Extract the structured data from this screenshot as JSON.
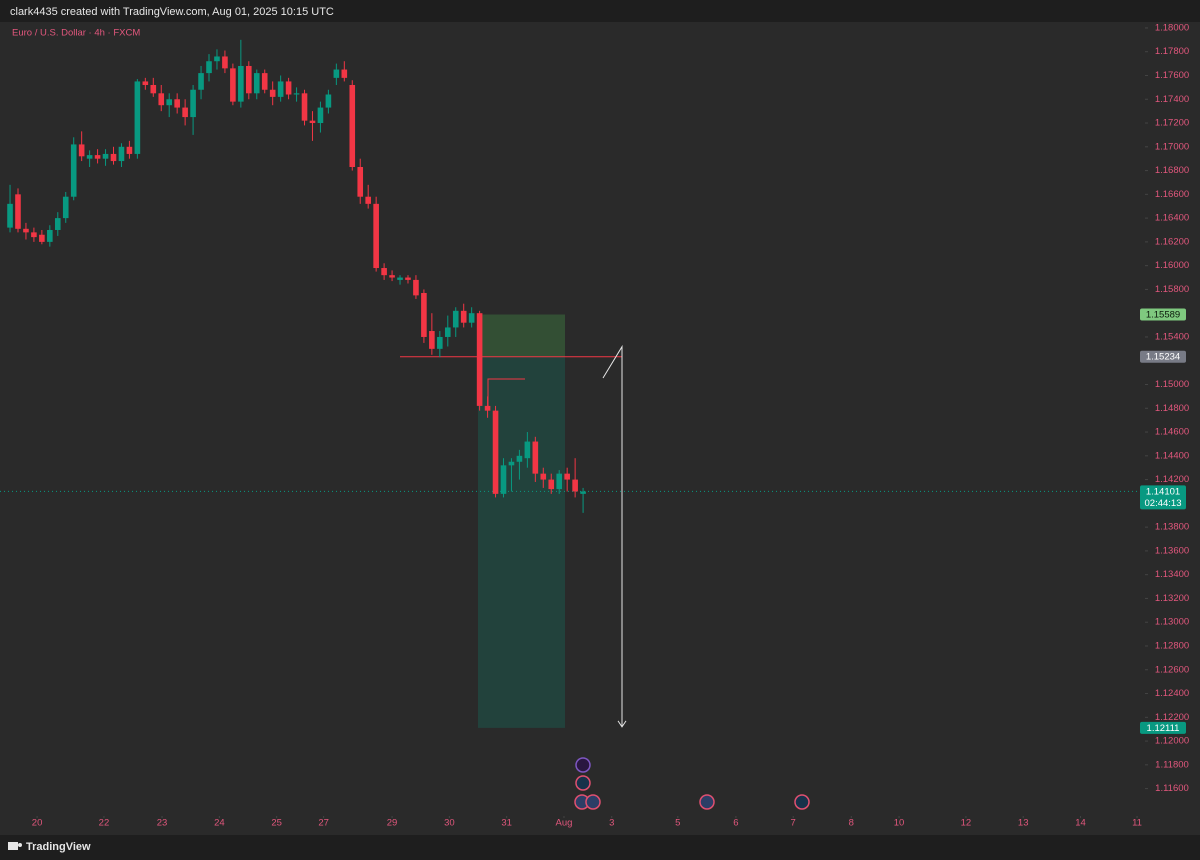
{
  "header": {
    "text": "clark4435 created with TradingView.com, Aug 01, 2025 10:15 UTC"
  },
  "chart_data": {
    "type": "candlestick",
    "title": "Euro / U.S. Dollar · 4h · FXCM",
    "up_color": "#089981",
    "down_color": "#f23645",
    "grid": false,
    "open": [
      1.1632,
      1.166,
      1.1631,
      1.1628,
      1.1626,
      1.162,
      1.163,
      1.164,
      1.1658,
      1.1702,
      1.169,
      1.1693,
      1.169,
      1.1694,
      1.1688,
      1.17,
      1.1694,
      1.1755,
      1.1752,
      1.1745,
      1.1735,
      1.174,
      1.1733,
      1.1725,
      1.1748,
      1.1762,
      1.1772,
      1.1776,
      1.1766,
      1.1738,
      1.1768,
      1.1745,
      1.1762,
      1.1748,
      1.1742,
      1.1755,
      1.1744,
      1.1745,
      1.1722,
      1.172,
      1.1733,
      1.1758,
      1.1765,
      1.1752,
      1.1683,
      1.1658,
      1.1652,
      1.1598,
      1.1592,
      1.1588,
      1.159,
      1.1588,
      1.1577,
      1.1545,
      1.153,
      1.154,
      1.1548,
      1.1562,
      1.1552,
      1.156,
      1.1482,
      1.1478,
      1.1408,
      1.1432,
      1.1435,
      1.1438,
      1.1452,
      1.1425,
      1.142,
      1.1412,
      1.1425,
      1.142,
      1.1408
    ],
    "high": [
      1.1668,
      1.1665,
      1.1636,
      1.1632,
      1.163,
      1.1634,
      1.1645,
      1.1662,
      1.1708,
      1.1713,
      1.1697,
      1.1698,
      1.1698,
      1.17,
      1.1703,
      1.1705,
      1.1757,
      1.1758,
      1.1758,
      1.1752,
      1.1745,
      1.1745,
      1.174,
      1.1752,
      1.1768,
      1.1778,
      1.1782,
      1.1781,
      1.177,
      1.179,
      1.1772,
      1.1765,
      1.1765,
      1.1755,
      1.176,
      1.1758,
      1.175,
      1.1748,
      1.173,
      1.1738,
      1.1748,
      1.177,
      1.1772,
      1.1756,
      1.169,
      1.1668,
      1.1658,
      1.1602,
      1.1596,
      1.1592,
      1.1592,
      1.1592,
      1.158,
      1.156,
      1.1545,
      1.1558,
      1.1565,
      1.1568,
      1.1565,
      1.1562,
      1.149,
      1.1482,
      1.1438,
      1.1438,
      1.1445,
      1.146,
      1.1456,
      1.143,
      1.1425,
      1.1428,
      1.143,
      1.1438,
      1.1413
    ],
    "low": [
      1.1628,
      1.1628,
      1.1622,
      1.162,
      1.1618,
      1.1616,
      1.1625,
      1.1636,
      1.1655,
      1.1688,
      1.1683,
      1.1686,
      1.1684,
      1.1685,
      1.1683,
      1.169,
      1.169,
      1.1748,
      1.1742,
      1.173,
      1.1725,
      1.1728,
      1.1718,
      1.171,
      1.174,
      1.1755,
      1.1765,
      1.1762,
      1.1735,
      1.1733,
      1.174,
      1.174,
      1.1745,
      1.1735,
      1.1738,
      1.174,
      1.1738,
      1.1718,
      1.1705,
      1.1712,
      1.1728,
      1.1752,
      1.1755,
      1.168,
      1.1652,
      1.1648,
      1.1595,
      1.1588,
      1.1587,
      1.1584,
      1.1585,
      1.1572,
      1.1535,
      1.1525,
      1.1523,
      1.1532,
      1.154,
      1.1548,
      1.1548,
      1.1478,
      1.1472,
      1.1405,
      1.1405,
      1.141,
      1.142,
      1.143,
      1.1418,
      1.1413,
      1.1408,
      1.1408,
      1.141,
      1.1405,
      1.1392
    ],
    "close": [
      1.1652,
      1.1631,
      1.1628,
      1.1624,
      1.162,
      1.163,
      1.164,
      1.1658,
      1.1702,
      1.1692,
      1.1693,
      1.169,
      1.1694,
      1.1688,
      1.17,
      1.1694,
      1.1755,
      1.1752,
      1.1745,
      1.1735,
      1.174,
      1.1733,
      1.1725,
      1.1748,
      1.1762,
      1.1772,
      1.1776,
      1.1766,
      1.1738,
      1.1768,
      1.1745,
      1.1762,
      1.1748,
      1.1742,
      1.1755,
      1.1744,
      1.1745,
      1.1722,
      1.172,
      1.1733,
      1.1744,
      1.1765,
      1.1758,
      1.1683,
      1.1658,
      1.1652,
      1.1598,
      1.1592,
      1.159,
      1.159,
      1.1588,
      1.1575,
      1.154,
      1.153,
      1.154,
      1.1548,
      1.1562,
      1.1552,
      1.156,
      1.1482,
      1.1478,
      1.1408,
      1.1432,
      1.1435,
      1.144,
      1.1452,
      1.1425,
      1.142,
      1.1412,
      1.1425,
      1.142,
      1.141,
      1.141
    ],
    "xlim": [
      -1.26,
      142.6
    ],
    "xticks": [
      {
        "value": 3.4,
        "label": "20"
      },
      {
        "value": 11.8,
        "label": "22"
      },
      {
        "value": 19.1,
        "label": "23"
      },
      {
        "value": 26.3,
        "label": "24"
      },
      {
        "value": 33.5,
        "label": "25"
      },
      {
        "value": 39.4,
        "label": "27"
      },
      {
        "value": 48,
        "label": "29"
      },
      {
        "value": 55.2,
        "label": "30"
      },
      {
        "value": 62.4,
        "label": "31"
      },
      {
        "value": 69.6,
        "label": "Aug"
      },
      {
        "value": 75.6,
        "label": "3"
      },
      {
        "value": 83.9,
        "label": "5"
      },
      {
        "value": 91.2,
        "label": "6"
      },
      {
        "value": 98.4,
        "label": "7"
      },
      {
        "value": 105.7,
        "label": "8"
      },
      {
        "value": 111.7,
        "label": "10"
      },
      {
        "value": 120.1,
        "label": "12"
      },
      {
        "value": 127.3,
        "label": "13"
      },
      {
        "value": 134.5,
        "label": "14"
      },
      {
        "value": 141.6,
        "label": "11"
      }
    ],
    "ylim": [
      1.1142,
      1.1805
    ],
    "yticks": [
      {
        "value": 1.18,
        "label": "1.18000"
      },
      {
        "value": 1.178,
        "label": "1.17800"
      },
      {
        "value": 1.176,
        "label": "1.17600"
      },
      {
        "value": 1.174,
        "label": "1.17400"
      },
      {
        "value": 1.172,
        "label": "1.17200"
      },
      {
        "value": 1.17,
        "label": "1.17000"
      },
      {
        "value": 1.168,
        "label": "1.16800"
      },
      {
        "value": 1.166,
        "label": "1.16600"
      },
      {
        "value": 1.164,
        "label": "1.16400"
      },
      {
        "value": 1.162,
        "label": "1.16200"
      },
      {
        "value": 1.16,
        "label": "1.16000"
      },
      {
        "value": 1.158,
        "label": "1.15800"
      },
      {
        "value": 1.154,
        "label": "1.15400"
      },
      {
        "value": 1.15,
        "label": "1.15000"
      },
      {
        "value": 1.148,
        "label": "1.14800"
      },
      {
        "value": 1.146,
        "label": "1.14600"
      },
      {
        "value": 1.144,
        "label": "1.14400"
      },
      {
        "value": 1.142,
        "label": "1.14200"
      },
      {
        "value": 1.138,
        "label": "1.13800"
      },
      {
        "value": 1.136,
        "label": "1.13600"
      },
      {
        "value": 1.134,
        "label": "1.13400"
      },
      {
        "value": 1.132,
        "label": "1.13200"
      },
      {
        "value": 1.13,
        "label": "1.13000"
      },
      {
        "value": 1.128,
        "label": "1.12800"
      },
      {
        "value": 1.126,
        "label": "1.12600"
      },
      {
        "value": 1.124,
        "label": "1.12400"
      },
      {
        "value": 1.122,
        "label": "1.12200"
      },
      {
        "value": 1.12,
        "label": "1.12000"
      },
      {
        "value": 1.118,
        "label": "1.11800"
      },
      {
        "value": 1.116,
        "label": "1.11600"
      }
    ],
    "price_tags": [
      {
        "value": 1.15589,
        "color": "#7fc97f",
        "text_color": "#0b1a0b"
      },
      {
        "value": 1.15234,
        "color": "#787b86",
        "text_color": "#ffffff"
      },
      {
        "value": 1.14101,
        "color": "#089981",
        "text_color": "#ffffff",
        "countdown": "02:44:13"
      },
      {
        "value": 1.12111,
        "color": "#089981",
        "text_color": "#ffffff"
      }
    ]
  },
  "footer": {
    "brand": "TradingView"
  }
}
